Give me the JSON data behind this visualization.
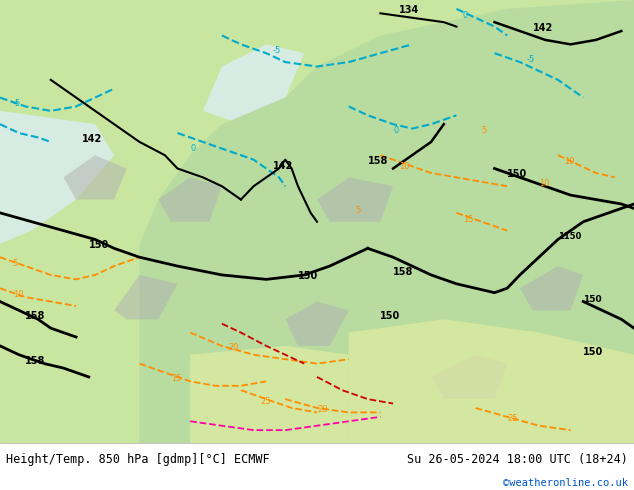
{
  "title_left": "Height/Temp. 850 hPa [gdmp][°C] ECMWF",
  "title_right": "Su 26-05-2024 18:00 UTC (18+24)",
  "credit": "©weatheronline.co.uk",
  "background_color": "#ffffff",
  "map_bg_color_land": "#c8e6c0",
  "map_bg_color_sea": "#ffffff",
  "bottom_bar_color": "#e8e8e8",
  "bottom_text_color": "#000000",
  "credit_color": "#0055cc",
  "fig_width": 6.34,
  "fig_height": 4.9,
  "dpi": 100
}
